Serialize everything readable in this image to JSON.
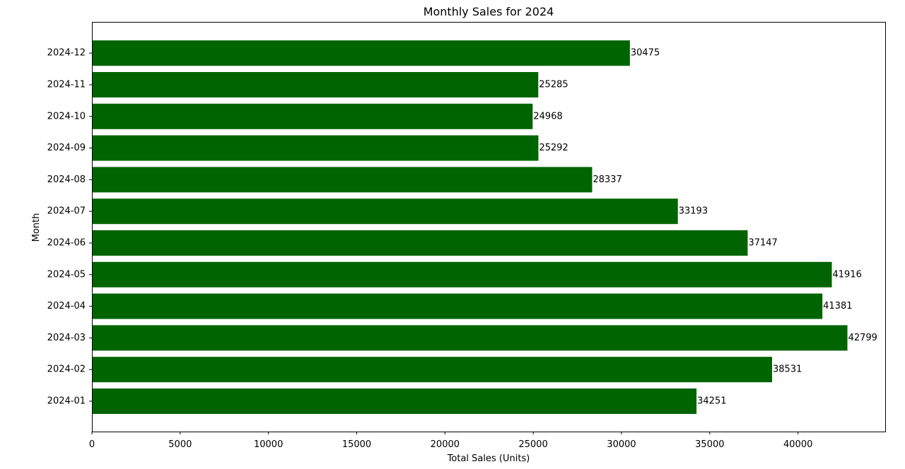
{
  "chart_data": {
    "type": "bar",
    "orientation": "horizontal",
    "title": "Monthly Sales for 2024",
    "xlabel": "Total Sales (Units)",
    "ylabel": "Month",
    "categories": [
      "2024-01",
      "2024-02",
      "2024-03",
      "2024-04",
      "2024-05",
      "2024-06",
      "2024-07",
      "2024-08",
      "2024-09",
      "2024-10",
      "2024-11",
      "2024-12"
    ],
    "values": [
      34251,
      38531,
      42799,
      41381,
      41916,
      37147,
      33193,
      28337,
      25292,
      24968,
      25285,
      30475
    ],
    "xlim": [
      0,
      44939
    ],
    "x_ticks": [
      0,
      5000,
      10000,
      15000,
      20000,
      25000,
      30000,
      35000,
      40000
    ],
    "bar_color": "#006400",
    "grid": false,
    "data_labels": true
  }
}
